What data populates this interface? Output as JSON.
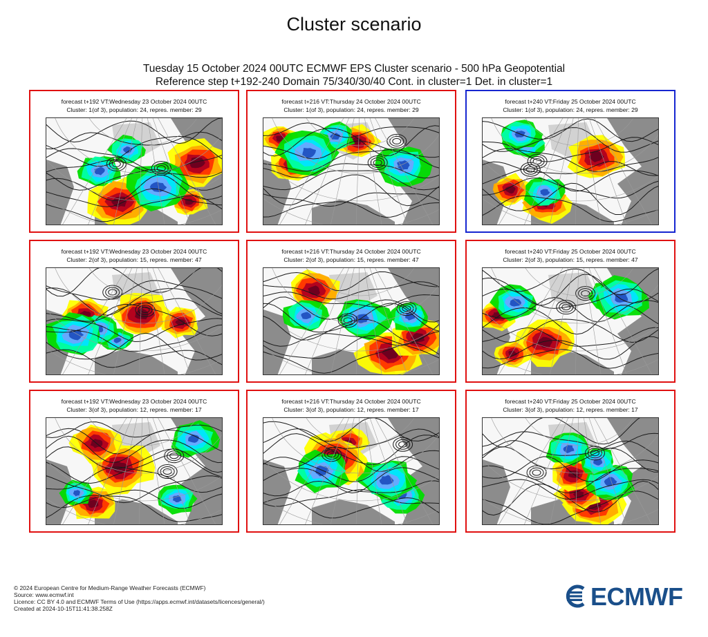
{
  "title": "Cluster scenario",
  "header": {
    "line1": "Tuesday 15 October 2024 00UTC ECMWF EPS Cluster scenario - 500 hPa Geopotential",
    "line2": "Reference step t+192-240 Domain 75/340/30/40 Cont. in cluster=1 Det. in cluster=1"
  },
  "panels": [
    {
      "forecast": "forecast t+192 VT:Wednesday 23 October 2024 00UTC",
      "cluster": "Cluster: 1(of 3), population: 24, repres. member: 29"
    },
    {
      "forecast": "forecast t+216 VT:Thursday 24 October 2024 00UTC",
      "cluster": "Cluster: 1(of 3), population: 24, repres. member: 29"
    },
    {
      "forecast": "forecast t+240 VT:Friday 25 October 2024 00UTC",
      "cluster": "Cluster: 1(of 3), population: 24, repres. member: 29",
      "highlighted": true
    },
    {
      "forecast": "forecast t+192 VT:Wednesday 23 October 2024 00UTC",
      "cluster": "Cluster: 2(of 3), population: 15, repres. member: 47"
    },
    {
      "forecast": "forecast t+216 VT:Thursday 24 October 2024 00UTC",
      "cluster": "Cluster: 2(of 3), population: 15, repres. member: 47"
    },
    {
      "forecast": "forecast t+240 VT:Friday 25 October 2024 00UTC",
      "cluster": "Cluster: 2(of 3), population: 15, repres. member: 47"
    },
    {
      "forecast": "forecast t+192 VT:Wednesday 23 October 2024 00UTC",
      "cluster": "Cluster: 3(of 3), population: 12, repres. member: 17"
    },
    {
      "forecast": "forecast t+216 VT:Thursday 24 October 2024 00UTC",
      "cluster": "Cluster: 3(of 3), population: 12, repres. member: 17"
    },
    {
      "forecast": "forecast t+240 VT:Friday 25 October 2024 00UTC",
      "cluster": "Cluster: 3(of 3), population: 12, repres. member: 17"
    }
  ],
  "colors": {
    "panel_border": "#e01010",
    "highlight_border": "#1525d0",
    "land": "#8c8c8c",
    "anomaly_positive": [
      "#ffff00",
      "#ffaa00",
      "#ff3300",
      "#b00020",
      "#6a0020"
    ],
    "anomaly_negative": [
      "#00dd00",
      "#00ffaa",
      "#00e5ff",
      "#6aa6ff",
      "#2050c0"
    ],
    "contour": "#1a1a1a"
  },
  "footer": {
    "line1": "© 2024 European Centre for Medium-Range Weather Forecasts (ECMWF)",
    "line2": "Source: www.ecmwf.int",
    "line3": "Licence: CC BY 4.0 and ECMWF Terms of Use (https://apps.ecmwf.int/datasets/licences/general/)",
    "line4": "Created at 2024-10-15T11:41:38.258Z"
  },
  "logo": {
    "text": "ECMWF",
    "icon": "ecmwf-logo-icon"
  }
}
